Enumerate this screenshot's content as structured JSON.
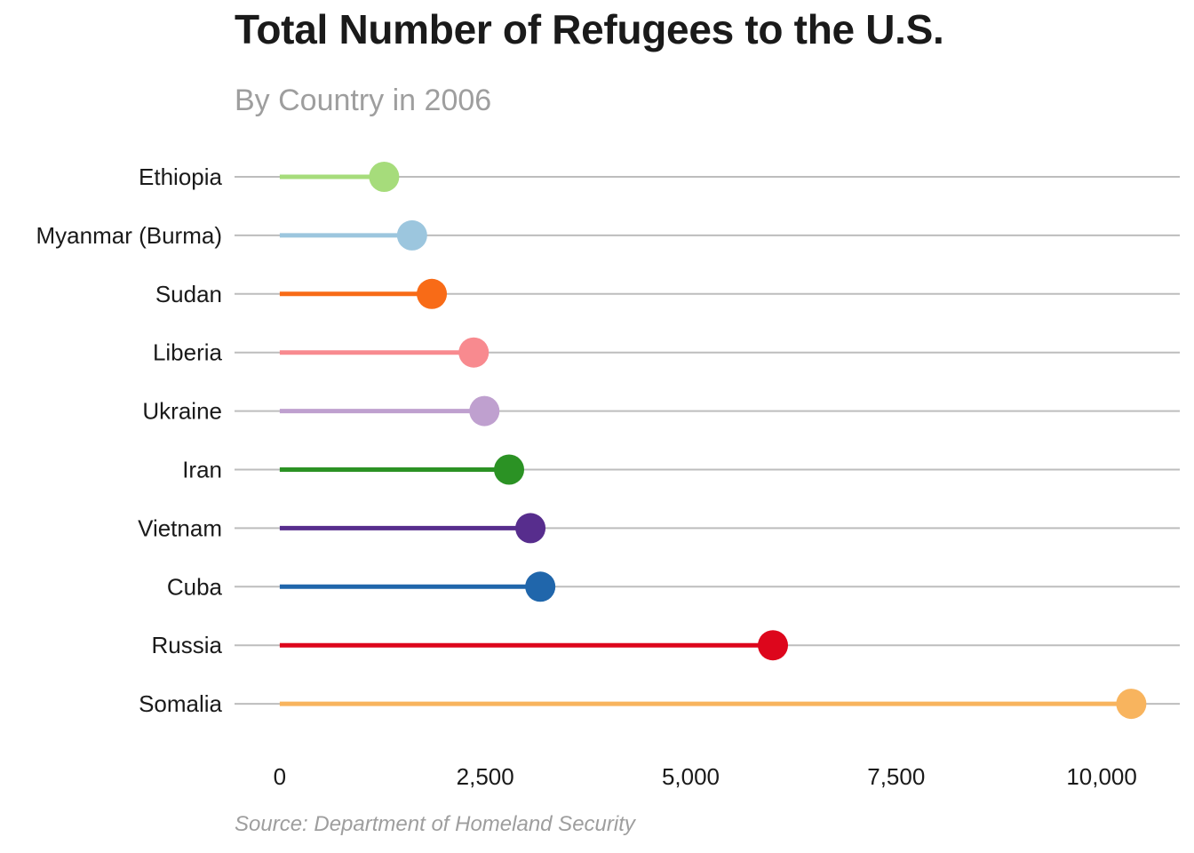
{
  "chart_data": {
    "type": "lollipop",
    "title": "Total Number of Refugees to the U.S.",
    "subtitle": "By Country in 2006",
    "caption": "Source: Department of Homeland Security",
    "xlabel": "",
    "ylabel": "",
    "xlim": [
      -550,
      10950
    ],
    "x_ticks": [
      0,
      2500,
      5000,
      7500,
      10000
    ],
    "x_tick_labels": [
      "0",
      "2,500",
      "5,000",
      "7,500",
      "10,000"
    ],
    "grid": "horizontal",
    "legend": "none",
    "categories": [
      "Ethiopia",
      "Myanmar (Burma)",
      "Sudan",
      "Liberia",
      "Ukraine",
      "Iran",
      "Vietnam",
      "Cuba",
      "Russia",
      "Somalia"
    ],
    "values": [
      1270,
      1610,
      1850,
      2360,
      2490,
      2790,
      3050,
      3170,
      6000,
      10360
    ],
    "colors": [
      "#a6dc7b",
      "#9cc6de",
      "#f86b17",
      "#f88a8f",
      "#bfa0cf",
      "#2b9224",
      "#572d8d",
      "#2066ab",
      "#dd061c",
      "#f8b45e"
    ],
    "gridline_color": "#bdbdbd"
  }
}
